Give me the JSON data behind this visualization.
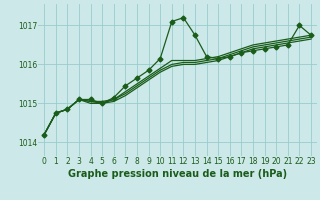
{
  "title": "Graphe pression niveau de la mer (hPa)",
  "bg_color": "#cce8e8",
  "grid_color": "#99cccc",
  "line_color": "#1a5c1a",
  "x_ticks": [
    0,
    1,
    2,
    3,
    4,
    5,
    6,
    7,
    8,
    9,
    10,
    11,
    12,
    13,
    14,
    15,
    16,
    17,
    18,
    19,
    20,
    21,
    22,
    23
  ],
  "y_ticks": [
    1014,
    1015,
    1016,
    1017
  ],
  "ylim": [
    1013.65,
    1017.55
  ],
  "xlim": [
    -0.5,
    23.5
  ],
  "series_main": [
    1014.2,
    1014.75,
    1014.85,
    1015.1,
    1015.1,
    1015.0,
    1015.15,
    1015.45,
    1015.65,
    1015.85,
    1016.15,
    1017.1,
    1017.2,
    1016.75,
    1016.2,
    1016.15,
    1016.2,
    1016.3,
    1016.35,
    1016.4,
    1016.45,
    1016.5,
    1017.0,
    1016.75
  ],
  "series_others": [
    [
      1014.2,
      1014.75,
      1014.85,
      1015.1,
      1015.05,
      1015.05,
      1015.1,
      1015.3,
      1015.5,
      1015.7,
      1015.9,
      1016.1,
      1016.1,
      1016.1,
      1016.15,
      1016.2,
      1016.3,
      1016.4,
      1016.5,
      1016.55,
      1016.6,
      1016.65,
      1016.7,
      1016.75
    ],
    [
      1014.2,
      1014.75,
      1014.85,
      1015.1,
      1015.05,
      1015.0,
      1015.1,
      1015.25,
      1015.45,
      1015.65,
      1015.85,
      1016.0,
      1016.05,
      1016.05,
      1016.1,
      1016.15,
      1016.25,
      1016.35,
      1016.45,
      1016.5,
      1016.55,
      1016.6,
      1016.65,
      1016.7
    ],
    [
      1014.2,
      1014.75,
      1014.85,
      1015.1,
      1015.0,
      1015.0,
      1015.05,
      1015.2,
      1015.4,
      1015.6,
      1015.8,
      1015.95,
      1016.0,
      1016.0,
      1016.05,
      1016.1,
      1016.2,
      1016.3,
      1016.4,
      1016.45,
      1016.5,
      1016.55,
      1016.6,
      1016.65
    ]
  ],
  "marker": "D",
  "marker_size": 2.5,
  "linewidth": 0.9,
  "tick_fontsize": 5.5,
  "label_fontsize": 7.0
}
